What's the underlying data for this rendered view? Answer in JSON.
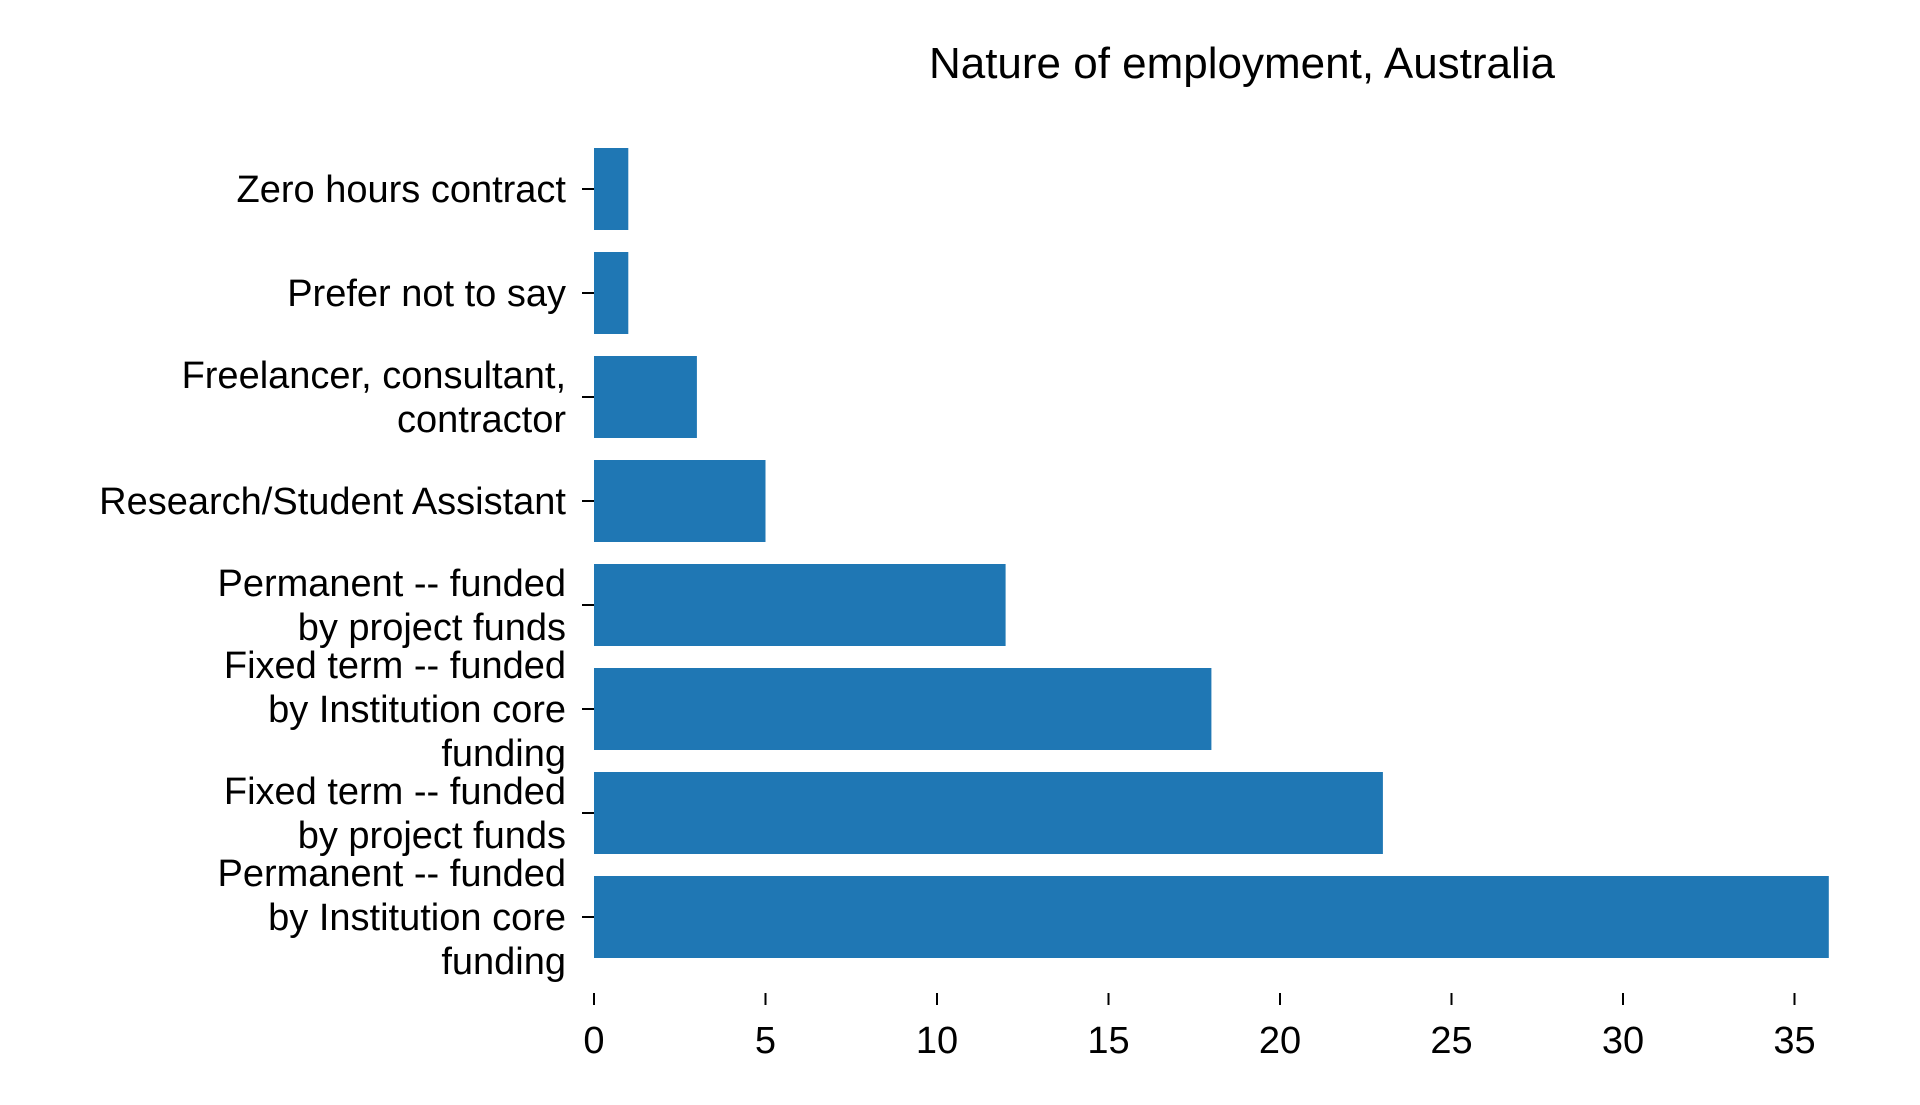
{
  "chart_data": {
    "type": "bar",
    "orientation": "horizontal",
    "title": "Nature of employment, Australia",
    "xlabel": "",
    "ylabel": "",
    "categories": [
      "Zero hours contract",
      "Prefer not to say",
      "Freelancer, consultant, contractor",
      "Research/Student Assistant",
      "Permanent -- funded by project funds",
      "Fixed term -- funded by Institution core funding",
      "Fixed term -- funded by project funds",
      "Permanent -- funded by Institution core funding"
    ],
    "category_label_lines": [
      [
        "Zero hours contract"
      ],
      [
        "Prefer not to say"
      ],
      [
        "Freelancer, consultant,",
        "contractor"
      ],
      [
        "Research/Student Assistant"
      ],
      [
        "Permanent -- funded",
        "by project funds"
      ],
      [
        "Fixed term -- funded",
        "by Institution core",
        "funding"
      ],
      [
        "Fixed term -- funded",
        "by project funds"
      ],
      [
        "Permanent -- funded",
        "by Institution core",
        "funding"
      ]
    ],
    "values": [
      1,
      1,
      3,
      5,
      12,
      18,
      23,
      36
    ],
    "xlim": [
      0,
      36
    ],
    "xticks": [
      0,
      5,
      10,
      15,
      20,
      25,
      30,
      35
    ],
    "grid": false,
    "legend": "none",
    "bar_color": "#1f77b4"
  }
}
